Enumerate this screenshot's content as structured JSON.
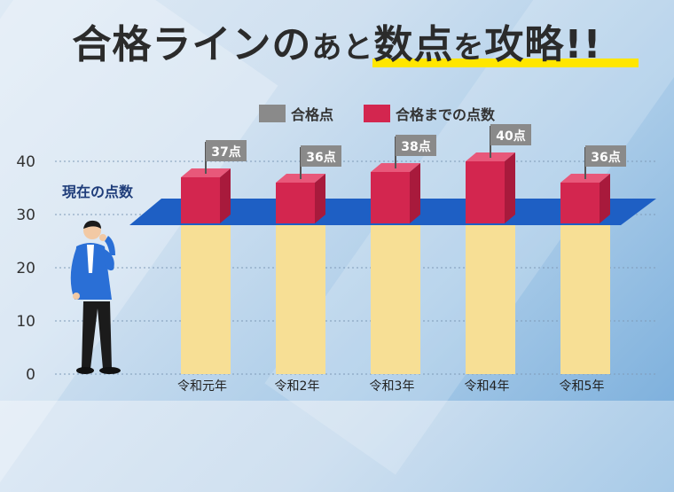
{
  "title": {
    "part1": "合格ラインの",
    "part2": "あと",
    "part3": "数点",
    "part4": "を",
    "part5": "攻略!!"
  },
  "legend": {
    "pass_score": "合格点",
    "remaining": "合格までの点数"
  },
  "current_score_label": "現在の点数",
  "colors": {
    "bar": "#f7df95",
    "remaining": "#d3264f",
    "current_plane": "#1e5fc4",
    "flag": "#8a8a8a",
    "highlight": "#ffe600"
  },
  "chart_data": {
    "type": "bar",
    "title": "合格ラインのあと数点を攻略!!",
    "categories": [
      "令和元年",
      "令和2年",
      "令和3年",
      "令和4年",
      "令和5年"
    ],
    "current_score": 28,
    "series": [
      {
        "name": "合格点",
        "values": [
          37,
          36,
          38,
          40,
          36
        ]
      },
      {
        "name": "合格までの点数",
        "values": [
          9,
          8,
          10,
          12,
          8
        ]
      }
    ],
    "flag_labels": [
      "37点",
      "36点",
      "38点",
      "40点",
      "36点"
    ],
    "yticks": [
      0,
      10,
      20,
      30,
      40
    ],
    "ylim": [
      0,
      40
    ]
  }
}
